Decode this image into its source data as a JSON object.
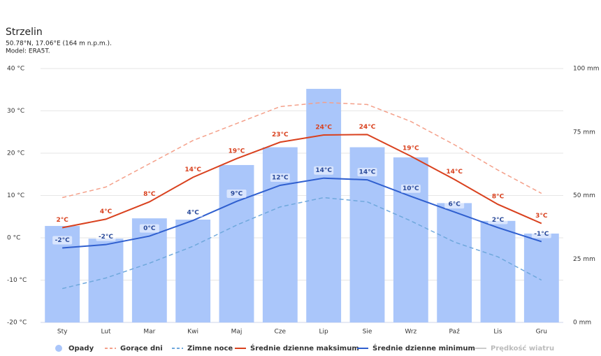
{
  "chart_data": {
    "type": "bar-line",
    "title": "Strzelin",
    "subtitle": [
      "50.78°N, 17.06°E (164 m n.p.m.).",
      "Model: ERA5T."
    ],
    "categories": [
      "Sty",
      "Lut",
      "Mar",
      "Kwi",
      "Maj",
      "Cze",
      "Lip",
      "Sie",
      "Wrz",
      "Paź",
      "Lis",
      "Gru"
    ],
    "ylim": [
      -20,
      40
    ],
    "yticks": [
      {
        "value": -20,
        "label": "-20 °C"
      },
      {
        "value": -10,
        "label": "-10 °C"
      },
      {
        "value": 0,
        "label": "0 °C"
      },
      {
        "value": 10,
        "label": "10 °C"
      },
      {
        "value": 20,
        "label": "20 °C"
      },
      {
        "value": 30,
        "label": "30 °C"
      },
      {
        "value": 40,
        "label": "40 °C"
      }
    ],
    "y2lim": [
      0,
      100
    ],
    "y2ticks": [
      {
        "value": 0,
        "label": "0 mm"
      },
      {
        "value": 25,
        "label": "25 mm"
      },
      {
        "value": 50,
        "label": "50 mm"
      },
      {
        "value": 75,
        "label": "75 mm"
      },
      {
        "value": 100,
        "label": "100 mm"
      }
    ],
    "grid": true,
    "legend": "bottom",
    "series": [
      {
        "name": "Opady",
        "type": "bar",
        "axis": "y2",
        "color": "#aac6fa",
        "values": [
          38,
          33,
          41,
          40.5,
          62,
          69,
          92,
          69,
          65,
          47,
          40,
          35
        ]
      },
      {
        "name": "Gorące dni",
        "type": "line",
        "dash": true,
        "color": "#f4a08a",
        "values": [
          9.5,
          12,
          17.5,
          23,
          27,
          31,
          32,
          31.5,
          27.5,
          22,
          16,
          10.5
        ]
      },
      {
        "name": "Zimne noce",
        "type": "line",
        "dash": true,
        "color": "#6fa8dc",
        "values": [
          -12,
          -9.5,
          -6,
          -2,
          3,
          7.3,
          9.5,
          8.5,
          4,
          -1,
          -4.5,
          -10
        ]
      },
      {
        "name": "Średnie dzienne maksimum",
        "type": "line",
        "color": "#d9411e",
        "values": [
          2.4,
          4.4,
          8.5,
          14.3,
          18.7,
          22.6,
          24.3,
          24.4,
          19.3,
          13.8,
          7.9,
          3.4
        ],
        "value_labels": [
          "2°C",
          "4°C",
          "8°C",
          "14°C",
          "19°C",
          "23°C",
          "24°C",
          "24°C",
          "19°C",
          "14°C",
          "8°C",
          "3°C"
        ]
      },
      {
        "name": "Średnie dzienne minimum",
        "type": "line",
        "color": "#2f5fcf",
        "values": [
          -2.4,
          -1.6,
          0.4,
          4.1,
          8.6,
          12.4,
          14.1,
          13.7,
          9.8,
          6.1,
          2.4,
          -0.9
        ],
        "value_labels": [
          "-2°C",
          "-2°C",
          "0°C",
          "4°C",
          "9°C",
          "12°C",
          "14°C",
          "14°C",
          "10°C",
          "6°C",
          "2°C",
          "-1°C"
        ]
      },
      {
        "name": "Prędkość wiatru",
        "type": "line",
        "hidden": true,
        "color": "#cccccc",
        "values": [
          null,
          null,
          null,
          null,
          null,
          null,
          null,
          null,
          null,
          null,
          null,
          null
        ]
      }
    ]
  }
}
